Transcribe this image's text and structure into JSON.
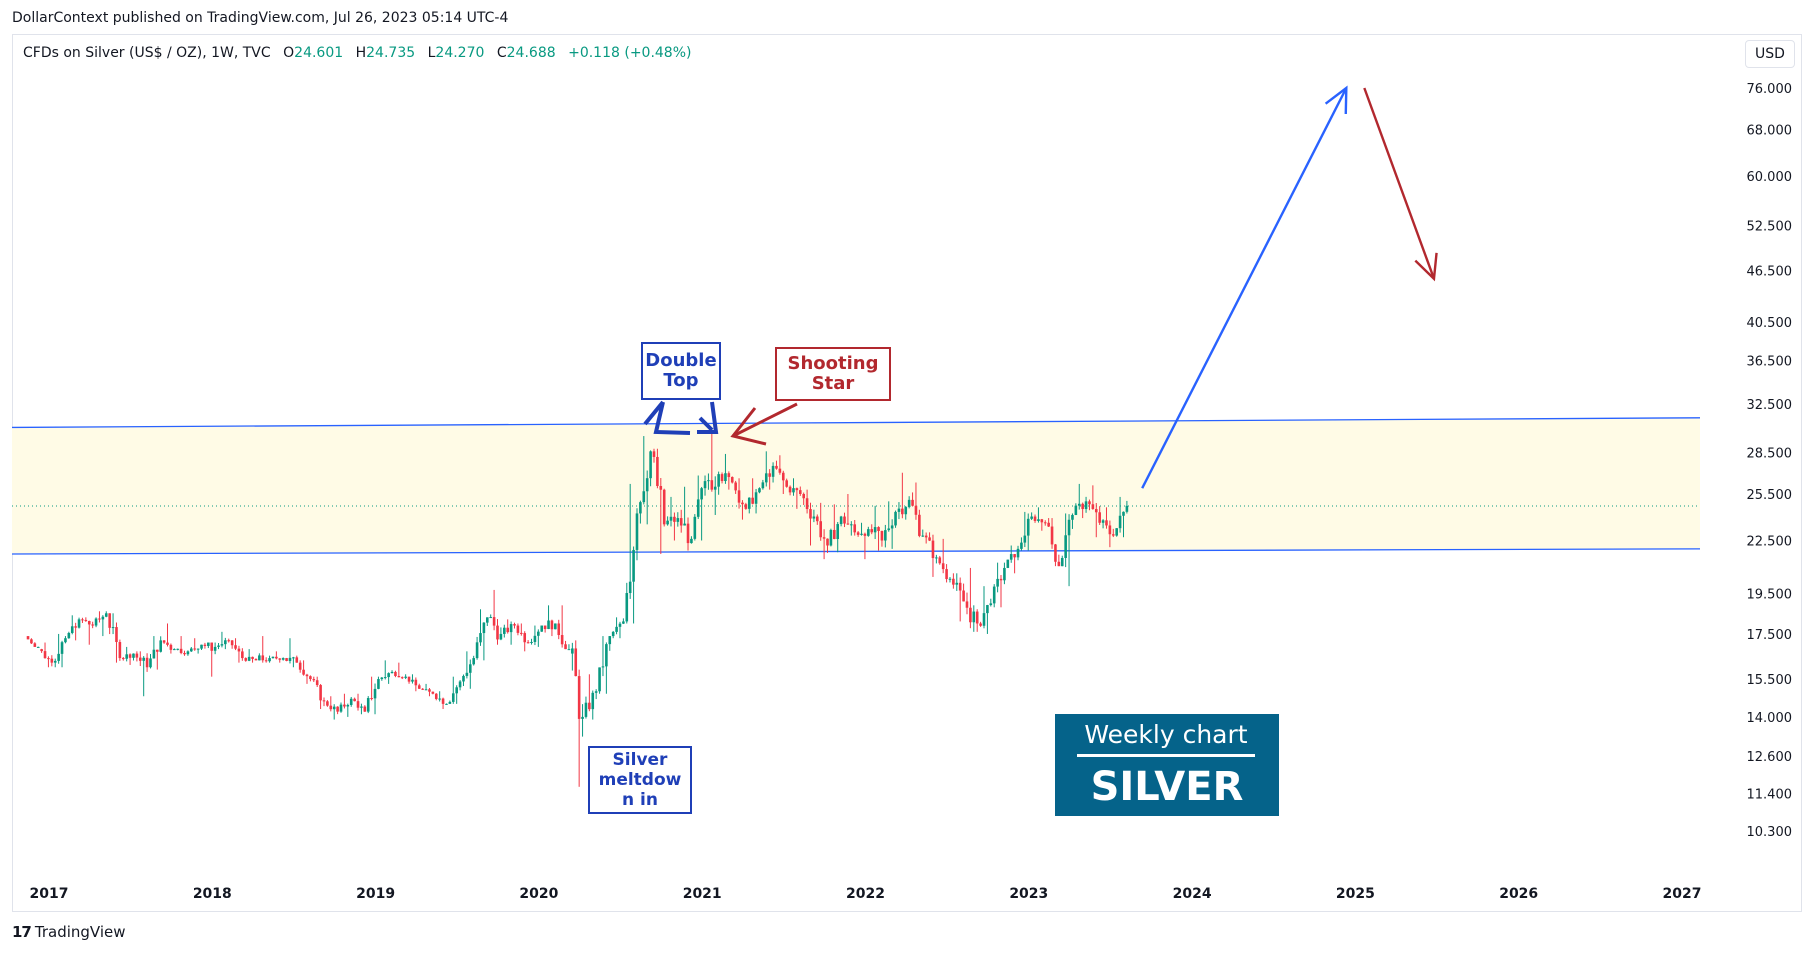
{
  "publisher_line": "DollarContext published on TradingView.com, Jul 26, 2023 05:14 UTC-4",
  "legend": {
    "symbol": "CFDs on Silver (US$ / OZ), 1W, TVC",
    "open_label": "O",
    "open": "24.601",
    "high_label": "H",
    "high": "24.735",
    "low_label": "L",
    "low": "24.270",
    "close_label": "C",
    "close": "24.688",
    "change": "+0.118 (+0.48%)"
  },
  "currency_button": "USD",
  "footer": {
    "logo": "17",
    "brand": "TradingView"
  },
  "annotations": {
    "double_top": "Double Top",
    "shooting_star": "Shooting Star",
    "meltdown": "Silver meltdow n in",
    "badge_subtitle": "Weekly chart",
    "badge_title": "SILVER"
  },
  "colors": {
    "up": "#089981",
    "down": "#f23645",
    "zone_fill": "#fffbe6",
    "zone_line": "#2962ff",
    "arrow_up": "#2962ff",
    "arrow_down": "#b2282e",
    "badge": "#05638a"
  },
  "chart_data": {
    "type": "candlestick",
    "title": "CFDs on Silver (US$ / OZ), 1W, TVC",
    "y_scale": "log",
    "y_ticks": [
      "76.000",
      "68.000",
      "60.000",
      "52.500",
      "46.500",
      "40.500",
      "36.500",
      "32.500",
      "28.500",
      "25.500",
      "22.500",
      "19.500",
      "17.500",
      "15.500",
      "14.000",
      "12.600",
      "11.400",
      "10.300"
    ],
    "x_ticks": [
      "2017",
      "2018",
      "2019",
      "2020",
      "2021",
      "2022",
      "2023",
      "2024",
      "2025",
      "2026",
      "2027"
    ],
    "last_price": 24.688,
    "zone": {
      "upper": {
        "from": [
          "2016-11",
          30.5
        ],
        "to": [
          "2027-05",
          31.3
        ]
      },
      "lower": {
        "from": [
          "2016-11",
          21.7
        ],
        "to": [
          "2027-05",
          22.0
        ]
      }
    },
    "projection_up": {
      "from": [
        "2023-09",
        25.9
      ],
      "to": [
        "2024-12",
        76.0
      ]
    },
    "projection_down": {
      "from": [
        "2024-12",
        76.0
      ],
      "to": [
        "2025-06",
        45.5
      ]
    },
    "series": [
      {
        "values": [
          [
            "2016-11",
            17.4,
            17.3,
            16.9,
            16.8
          ],
          [
            "2016-12",
            16.8,
            17.1,
            16.0,
            16.2
          ],
          [
            "2017-01",
            16.2,
            17.5,
            16.0,
            17.3
          ],
          [
            "2017-02",
            17.3,
            18.4,
            17.2,
            18.2
          ],
          [
            "2017-03",
            18.2,
            18.3,
            17.0,
            17.9
          ],
          [
            "2017-04",
            17.9,
            18.6,
            17.4,
            18.5
          ],
          [
            "2017-05",
            18.5,
            18.5,
            16.2,
            16.4
          ],
          [
            "2017-06",
            16.4,
            16.9,
            16.1,
            16.6
          ],
          [
            "2017-07",
            16.6,
            16.7,
            14.8,
            16.0
          ],
          [
            "2017-08",
            16.0,
            17.4,
            15.9,
            17.2
          ],
          [
            "2017-09",
            17.2,
            18.0,
            16.6,
            16.8
          ],
          [
            "2017-10",
            16.8,
            17.4,
            16.5,
            16.7
          ],
          [
            "2017-11",
            16.7,
            17.3,
            16.6,
            17.0
          ],
          [
            "2017-12",
            17.0,
            17.1,
            15.6,
            16.9
          ],
          [
            "2018-01",
            16.9,
            17.6,
            16.8,
            17.2
          ],
          [
            "2018-02",
            17.2,
            17.3,
            16.2,
            16.4
          ],
          [
            "2018-03",
            16.4,
            16.8,
            16.2,
            16.3
          ],
          [
            "2018-04",
            16.3,
            17.4,
            16.2,
            16.4
          ],
          [
            "2018-05",
            16.4,
            16.7,
            16.2,
            16.4
          ],
          [
            "2018-06",
            16.4,
            17.3,
            16.0,
            16.2
          ],
          [
            "2018-07",
            16.2,
            16.3,
            15.3,
            15.5
          ],
          [
            "2018-08",
            15.5,
            15.6,
            14.3,
            14.6
          ],
          [
            "2018-09",
            14.6,
            14.8,
            13.9,
            14.2
          ],
          [
            "2018-10",
            14.2,
            14.9,
            14.0,
            14.7
          ],
          [
            "2018-11",
            14.7,
            14.9,
            14.1,
            14.2
          ],
          [
            "2018-12",
            14.2,
            15.6,
            14.1,
            15.5
          ],
          [
            "2019-01",
            15.5,
            16.3,
            15.3,
            15.8
          ],
          [
            "2019-02",
            15.8,
            16.2,
            15.5,
            15.6
          ],
          [
            "2019-03",
            15.6,
            15.7,
            15.0,
            15.1
          ],
          [
            "2019-04",
            15.1,
            15.3,
            14.8,
            14.9
          ],
          [
            "2019-05",
            14.9,
            15.0,
            14.3,
            14.5
          ],
          [
            "2019-06",
            14.5,
            15.6,
            14.5,
            15.4
          ],
          [
            "2019-07",
            15.4,
            16.7,
            15.1,
            16.4
          ],
          [
            "2019-08",
            16.4,
            18.7,
            16.3,
            18.3
          ],
          [
            "2019-09",
            18.3,
            19.7,
            17.0,
            17.5
          ],
          [
            "2019-10",
            17.5,
            18.2,
            17.0,
            17.9
          ],
          [
            "2019-11",
            17.9,
            18.0,
            16.7,
            17.1
          ],
          [
            "2019-12",
            17.1,
            17.9,
            16.9,
            17.9
          ],
          [
            "2020-01",
            17.9,
            18.9,
            17.4,
            18.0
          ],
          [
            "2020-02",
            18.0,
            18.9,
            16.8,
            16.6
          ],
          [
            "2020-03",
            16.6,
            17.2,
            11.6,
            14.0
          ],
          [
            "2020-04",
            14.0,
            15.7,
            13.9,
            15.0
          ],
          [
            "2020-05",
            15.0,
            17.4,
            14.9,
            17.4
          ],
          [
            "2020-06",
            17.4,
            18.3,
            17.3,
            18.1
          ],
          [
            "2020-07",
            18.1,
            26.2,
            18.0,
            24.2
          ],
          [
            "2020-08",
            24.2,
            29.8,
            23.5,
            28.6
          ],
          [
            "2020-09",
            28.6,
            28.8,
            21.7,
            23.5
          ],
          [
            "2020-10",
            23.5,
            25.3,
            22.5,
            23.9
          ],
          [
            "2020-11",
            23.9,
            26.0,
            21.9,
            22.6
          ],
          [
            "2020-12",
            22.6,
            26.8,
            22.5,
            26.4
          ],
          [
            "2021-01",
            26.4,
            30.1,
            24.1,
            26.9
          ],
          [
            "2021-02",
            26.9,
            28.4,
            25.8,
            26.3
          ],
          [
            "2021-03",
            26.3,
            26.6,
            23.8,
            24.5
          ],
          [
            "2021-04",
            24.5,
            26.6,
            24.2,
            25.9
          ],
          [
            "2021-05",
            25.9,
            28.6,
            25.8,
            27.5
          ],
          [
            "2021-06",
            27.5,
            28.3,
            25.5,
            26.0
          ],
          [
            "2021-07",
            26.0,
            26.6,
            24.5,
            25.5
          ],
          [
            "2021-08",
            25.5,
            25.8,
            22.2,
            24.0
          ],
          [
            "2021-09",
            24.0,
            24.9,
            21.4,
            22.2
          ],
          [
            "2021-10",
            22.2,
            24.8,
            21.8,
            24.0
          ],
          [
            "2021-11",
            24.0,
            25.5,
            22.8,
            23.0
          ],
          [
            "2021-12",
            23.0,
            23.6,
            21.4,
            23.2
          ],
          [
            "2022-01",
            23.2,
            24.7,
            21.9,
            22.5
          ],
          [
            "2022-02",
            22.5,
            25.0,
            22.0,
            24.3
          ],
          [
            "2022-03",
            24.3,
            27.0,
            23.8,
            25.1
          ],
          [
            "2022-04",
            25.1,
            26.3,
            22.7,
            22.8
          ],
          [
            "2022-05",
            22.8,
            23.0,
            20.4,
            21.5
          ],
          [
            "2022-06",
            21.5,
            22.6,
            20.1,
            20.3
          ],
          [
            "2022-07",
            20.3,
            20.6,
            18.1,
            19.1
          ],
          [
            "2022-08",
            19.1,
            20.9,
            17.6,
            18.0
          ],
          [
            "2022-09",
            18.0,
            19.9,
            17.5,
            19.0
          ],
          [
            "2022-10",
            19.0,
            21.2,
            18.8,
            20.9
          ],
          [
            "2022-11",
            20.9,
            22.2,
            20.6,
            22.0
          ],
          [
            "2022-12",
            22.0,
            24.3,
            21.9,
            24.0
          ],
          [
            "2023-01",
            24.0,
            24.6,
            23.1,
            23.6
          ],
          [
            "2023-02",
            23.6,
            23.9,
            21.0,
            21.0
          ],
          [
            "2023-03",
            21.0,
            24.2,
            19.9,
            24.1
          ],
          [
            "2023-04",
            24.1,
            26.2,
            23.9,
            25.0
          ],
          [
            "2023-05",
            25.0,
            26.1,
            22.7,
            23.6
          ],
          [
            "2023-06",
            23.6,
            24.6,
            22.1,
            22.8
          ],
          [
            "2023-07",
            22.8,
            25.3,
            22.7,
            24.7
          ]
        ]
      }
    ]
  }
}
